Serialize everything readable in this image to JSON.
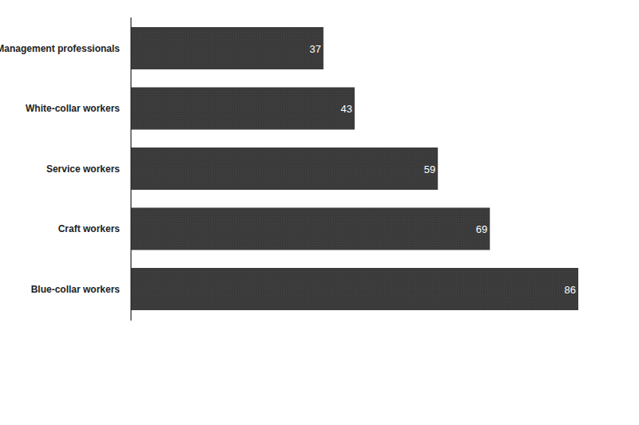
{
  "chart_data": {
    "type": "bar",
    "orientation": "horizontal",
    "categories": [
      "Management professionals",
      "White-collar workers",
      "Service workers",
      "Craft workers",
      "Blue-collar workers"
    ],
    "values": [
      37,
      43,
      59,
      69,
      86
    ],
    "color": "#3a3a3a",
    "xlim": [
      0,
      86
    ],
    "data_labels": true,
    "tick_labels": "y",
    "grid": false
  }
}
